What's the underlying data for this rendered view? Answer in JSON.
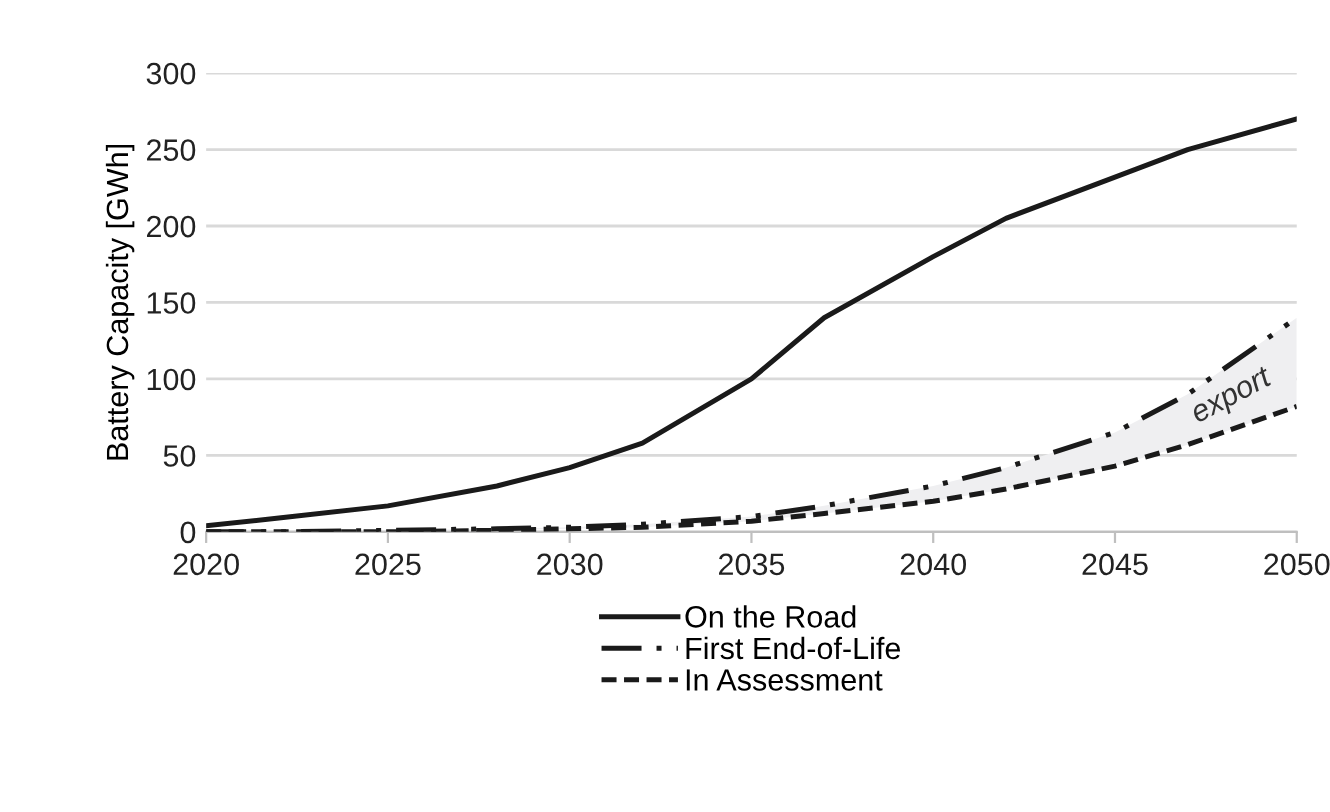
{
  "chart_data": {
    "type": "line",
    "ylabel": "Battery Capacity [GWh]",
    "x": [
      2020,
      2022,
      2025,
      2028,
      2030,
      2032,
      2035,
      2037,
      2040,
      2042,
      2045,
      2047,
      2050
    ],
    "series": [
      {
        "name": "On the Road",
        "color": "#1a1a1a",
        "line_style": "solid",
        "values": [
          4,
          9,
          17,
          30,
          42,
          58,
          100,
          140,
          180,
          205,
          232,
          250,
          270
        ]
      },
      {
        "name": "First End-of-Life",
        "color": "#1a1a1a",
        "line_style": "dashdot",
        "values": [
          0,
          0,
          1,
          2,
          3,
          5,
          10,
          17,
          30,
          42,
          65,
          90,
          140
        ],
        "lower": [
          0,
          0,
          0,
          1,
          2,
          3,
          7,
          12,
          20,
          28,
          43,
          57,
          82
        ],
        "upper": [
          0,
          0,
          1,
          2,
          3,
          5,
          10,
          17,
          30,
          42,
          65,
          90,
          140
        ]
      },
      {
        "name": "In Assessment",
        "color": "#1a1a1a",
        "line_style": "dashed",
        "values": [
          0,
          0,
          0,
          1,
          2,
          3,
          7,
          12,
          20,
          28,
          43,
          57,
          82
        ]
      }
    ],
    "xlim": [
      2020,
      2050
    ],
    "xticks": [
      2020,
      2025,
      2030,
      2035,
      2040,
      2045,
      2050
    ],
    "ylim": [
      0,
      300
    ],
    "yticks": [
      0,
      50,
      100,
      150,
      200,
      250,
      300
    ],
    "grid": "y",
    "legend": "bottom",
    "marker": "none",
    "annotations": [
      "export"
    ]
  }
}
